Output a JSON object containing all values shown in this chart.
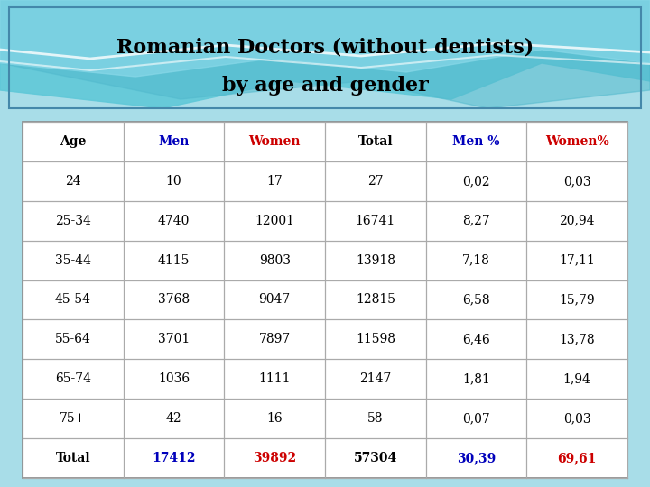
{
  "title_line1": "Romanian Doctors (without dentists)",
  "title_line2": "by age and gender",
  "columns": [
    "Age",
    "Men",
    "Women",
    "Total",
    "Men %",
    "Women%"
  ],
  "col_colors": [
    "black",
    "#0000bb",
    "#cc0000",
    "black",
    "#0000bb",
    "#cc0000"
  ],
  "rows": [
    [
      "24",
      "10",
      "17",
      "27",
      "0,02",
      "0,03"
    ],
    [
      "25-34",
      "4740",
      "12001",
      "16741",
      "8,27",
      "20,94"
    ],
    [
      "35-44",
      "4115",
      "9803",
      "13918",
      "7,18",
      "17,11"
    ],
    [
      "45-54",
      "3768",
      "9047",
      "12815",
      "6,58",
      "15,79"
    ],
    [
      "55-64",
      "3701",
      "7897",
      "11598",
      "6,46",
      "13,78"
    ],
    [
      "65-74",
      "1036",
      "1111",
      "2147",
      "1,81",
      "1,94"
    ],
    [
      "75+",
      "42",
      "16",
      "58",
      "0,07",
      "0,03"
    ],
    [
      "Total",
      "17412",
      "39892",
      "57304",
      "30,39",
      "69,61"
    ]
  ],
  "slide_bg": "#7ecfda",
  "title_box_bg": "#c8eaf0",
  "title_box_edge": "#4488aa",
  "table_bg": "#ffffff",
  "table_edge": "#888888",
  "grid_color": "#aaaaaa",
  "wave_color1": "#ffffff",
  "wave_color2": "#a0dce8",
  "wave_color3": "#60c0d0"
}
